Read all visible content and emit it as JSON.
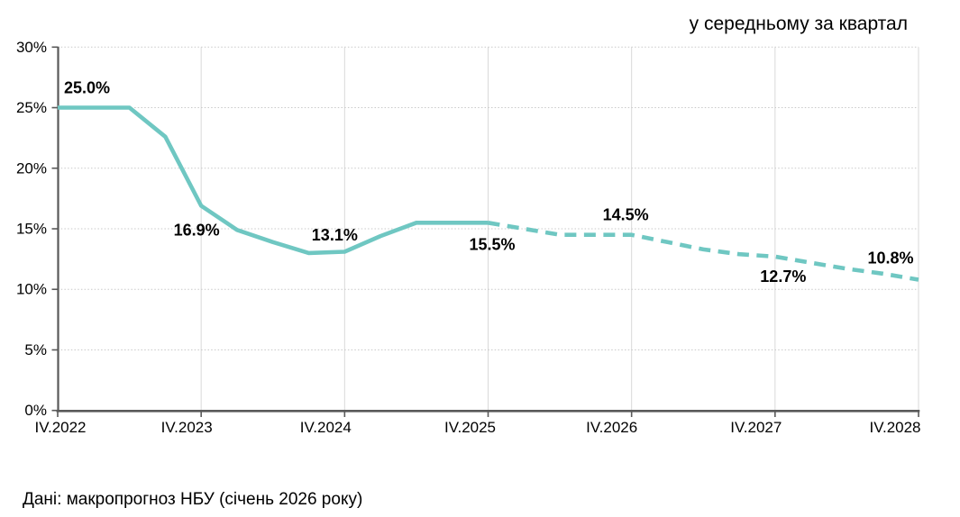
{
  "title": "у середньому за квартал",
  "source_note": "Дані: макропрогноз  НБУ  (січень 2026 року)",
  "colors": {
    "line": "#6FC7C2",
    "axis": "#595959",
    "gridline_vertical": "#D9D9D9",
    "gridline_horizontal": "#C9C9C9",
    "text": "#000000"
  },
  "chart_data": {
    "type": "line",
    "title": "у середньому за квартал",
    "xlabel": "",
    "ylabel": "",
    "ylim": [
      0,
      30
    ],
    "y_tick_step": 5,
    "grid": true,
    "legend": false,
    "y_tick_labels": [
      "0%",
      "5%",
      "10%",
      "15%",
      "20%",
      "25%",
      "30%"
    ],
    "x_tick_labels": [
      "IV.2022",
      "IV.2023",
      "IV.2024",
      "IV.2025",
      "IV.2026",
      "IV.2027",
      "IV.2028"
    ],
    "series": [
      {
        "name": "actual",
        "style": "solid",
        "quarters": [
          "IV.2022",
          "I.2023",
          "II.2023",
          "III.2023",
          "IV.2023",
          "I.2024",
          "II.2024",
          "III.2024",
          "IV.2024",
          "I.2025",
          "II.2025",
          "III.2025",
          "IV.2025"
        ],
        "values": [
          25.0,
          25.0,
          25.0,
          22.6,
          16.9,
          14.9,
          13.9,
          13.0,
          13.1,
          14.4,
          15.5,
          15.5,
          15.5
        ]
      },
      {
        "name": "forecast",
        "style": "dashed",
        "quarters": [
          "IV.2025",
          "I.2026",
          "II.2026",
          "III.2026",
          "IV.2026",
          "I.2027",
          "II.2027",
          "III.2027",
          "IV.2027",
          "I.2028",
          "II.2028",
          "III.2028",
          "IV.2028"
        ],
        "values": [
          15.5,
          15.0,
          14.5,
          14.5,
          14.5,
          13.9,
          13.3,
          12.9,
          12.7,
          12.2,
          11.7,
          11.3,
          10.8
        ]
      }
    ],
    "point_labels": [
      {
        "quarter": "IV.2022",
        "text": "25.0%"
      },
      {
        "quarter": "IV.2023",
        "text": "16.9%"
      },
      {
        "quarter": "IV.2024",
        "text": "13.1%"
      },
      {
        "quarter": "IV.2025",
        "text": "15.5%"
      },
      {
        "quarter": "IV.2026",
        "text": "14.5%"
      },
      {
        "quarter": "IV.2027",
        "text": "12.7%"
      },
      {
        "quarter": "IV.2028",
        "text": "10.8%"
      }
    ]
  }
}
